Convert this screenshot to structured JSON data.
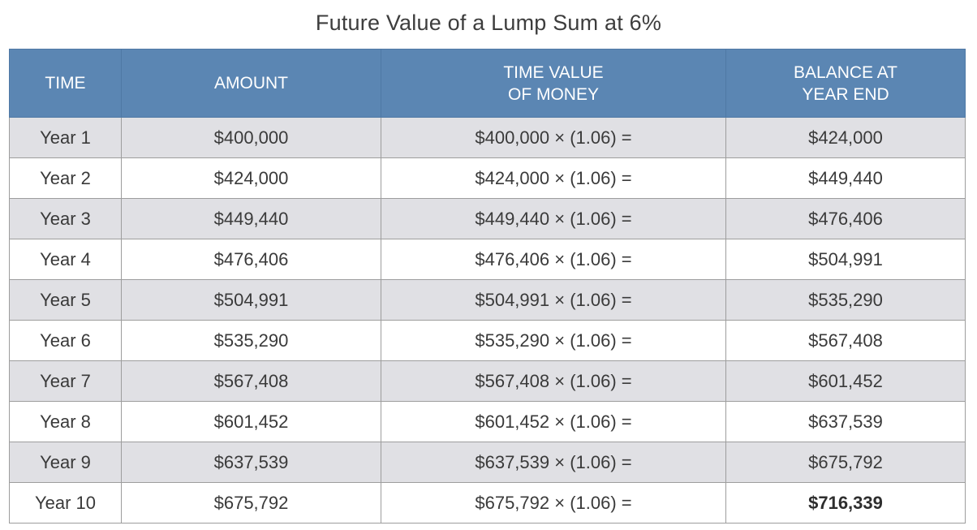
{
  "title": "Future Value of a Lump Sum at 6%",
  "chart_data": {
    "type": "table",
    "title": "Future Value of a Lump Sum at 6%",
    "columns": [
      {
        "lines": [
          "TIME"
        ]
      },
      {
        "lines": [
          "AMOUNT"
        ]
      },
      {
        "lines": [
          "TIME VALUE",
          "OF MONEY"
        ]
      },
      {
        "lines": [
          "BALANCE AT",
          "YEAR END"
        ]
      }
    ],
    "rows": [
      {
        "time": "Year 1",
        "amount": "$400,000",
        "tvm": "$400,000 × (1.06) =",
        "balance": "$424,000"
      },
      {
        "time": "Year 2",
        "amount": "$424,000",
        "tvm": "$424,000 × (1.06) =",
        "balance": "$449,440"
      },
      {
        "time": "Year 3",
        "amount": "$449,440",
        "tvm": "$449,440 × (1.06) =",
        "balance": "$476,406"
      },
      {
        "time": "Year 4",
        "amount": "$476,406",
        "tvm": "$476,406 × (1.06) =",
        "balance": "$504,991"
      },
      {
        "time": "Year 5",
        "amount": "$504,991",
        "tvm": "$504,991 × (1.06) =",
        "balance": "$535,290"
      },
      {
        "time": "Year 6",
        "amount": "$535,290",
        "tvm": "$535,290 × (1.06) =",
        "balance": "$567,408"
      },
      {
        "time": "Year 7",
        "amount": "$567,408",
        "tvm": "$567,408 × (1.06) =",
        "balance": "$601,452"
      },
      {
        "time": "Year 8",
        "amount": "$601,452",
        "tvm": "$601,452 × (1.06) =",
        "balance": "$637,539"
      },
      {
        "time": "Year 9",
        "amount": "$637,539",
        "tvm": "$637,539 × (1.06) =",
        "balance": "$675,792"
      },
      {
        "time": "Year 10",
        "amount": "$675,792",
        "tvm": "$675,792 × (1.06) =",
        "balance": "$716,339"
      }
    ],
    "colors": {
      "header_bg": "#5b86b3",
      "header_text": "#ffffff",
      "row_shade": "#e0e0e4",
      "row_plain": "#ffffff",
      "grid": "#9d9d9d"
    }
  }
}
